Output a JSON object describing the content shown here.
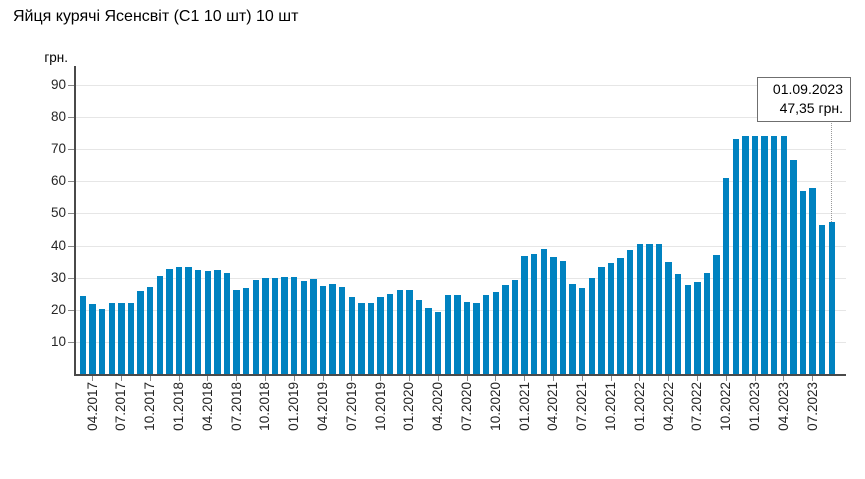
{
  "title": "Яйця курячі Ясенсвіт (С1 10 шт) 10 шт",
  "y_axis": {
    "unit_label": "грн.",
    "ticks": [
      10,
      20,
      30,
      40,
      50,
      60,
      70,
      80,
      90
    ]
  },
  "annotation": {
    "date": "01.09.2023",
    "value": "47,35 грн."
  },
  "colors": {
    "bar": "#0082c0",
    "gridline": "#e6e6e6",
    "axis": "#4a4a4a",
    "tick": "#8a8a8a",
    "text": "#262626",
    "annotation_border": "#6f6f6f",
    "connector_dotted": "#999999"
  },
  "chart_data": {
    "type": "bar",
    "title": "Яйця курячі Ясенсвіт (С1 10 шт) 10 шт",
    "ylabel": "грн.",
    "ylim": [
      0,
      96
    ],
    "grid": true,
    "bar_color": "#0082c0",
    "x_tick_every": 3,
    "x_tick_start_index": 1,
    "x": [
      "03.2017",
      "04.2017",
      "05.2017",
      "06.2017",
      "07.2017",
      "08.2017",
      "09.2017",
      "10.2017",
      "11.2017",
      "12.2017",
      "01.2018",
      "02.2018",
      "03.2018",
      "04.2018",
      "05.2018",
      "06.2018",
      "07.2018",
      "08.2018",
      "09.2018",
      "10.2018",
      "11.2018",
      "12.2018",
      "01.2019",
      "02.2019",
      "03.2019",
      "04.2019",
      "05.2019",
      "06.2019",
      "07.2019",
      "08.2019",
      "09.2019",
      "10.2019",
      "11.2019",
      "12.2019",
      "01.2020",
      "02.2020",
      "03.2020",
      "04.2020",
      "05.2020",
      "06.2020",
      "07.2020",
      "08.2020",
      "09.2020",
      "10.2020",
      "11.2020",
      "12.2020",
      "01.2021",
      "02.2021",
      "03.2021",
      "04.2021",
      "05.2021",
      "06.2021",
      "07.2021",
      "08.2021",
      "09.2021",
      "10.2021",
      "11.2021",
      "12.2021",
      "01.2022",
      "02.2022",
      "03.2022",
      "04.2022",
      "05.2022",
      "06.2022",
      "07.2022",
      "08.2022",
      "09.2022",
      "10.2022",
      "11.2022",
      "12.2022",
      "01.2023",
      "02.2023",
      "03.2023",
      "04.2023",
      "05.2023",
      "06.2023",
      "07.2023",
      "08.2023",
      "09.2023"
    ],
    "values": [
      24.4,
      21.7,
      20.3,
      22.0,
      22.0,
      22.1,
      25.8,
      27.0,
      30.4,
      32.6,
      33.3,
      33.4,
      32.4,
      32.2,
      32.3,
      31.3,
      26.1,
      26.7,
      29.3,
      30.0,
      30.0,
      30.2,
      30.2,
      29.1,
      29.5,
      27.5,
      28.1,
      27.0,
      23.9,
      22.1,
      22.1,
      23.9,
      25.0,
      26.3,
      26.2,
      23.0,
      20.5,
      19.3,
      24.6,
      24.5,
      22.4,
      22.1,
      24.7,
      25.4,
      27.7,
      29.3,
      36.6,
      37.3,
      38.9,
      36.4,
      35.3,
      28.1,
      26.7,
      29.8,
      33.3,
      34.7,
      36.2,
      38.5,
      40.4,
      40.4,
      40.4,
      35.0,
      31.1,
      27.7,
      28.8,
      31.6,
      37.1,
      60.9,
      73.1,
      74.0,
      74.2,
      74.2,
      74.2,
      74.2,
      66.5,
      57.1,
      57.8,
      46.4,
      47.35
    ],
    "x_tick_labels": [
      "04.2017",
      "07.2017",
      "10.2017",
      "01.2018",
      "04.2018",
      "07.2018",
      "10.2018",
      "01.2019",
      "04.2019",
      "07.2019",
      "10.2019",
      "01.2020",
      "04.2020",
      "07.2020",
      "10.2020",
      "01.2021",
      "04.2021",
      "07.2021",
      "10.2021",
      "01.2022",
      "04.2022",
      "07.2022",
      "10.2022",
      "01.2023",
      "04.2023",
      "07.2023"
    ],
    "last_point": {
      "x": "09.2023",
      "date": "01.09.2023",
      "value": 47.35
    }
  }
}
